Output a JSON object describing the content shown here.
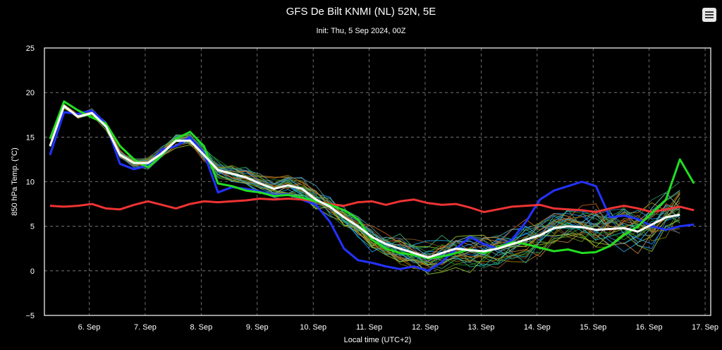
{
  "menu": {
    "icon": "hamburger-menu-icon"
  },
  "chart_data": {
    "type": "line",
    "title": "GFS De Bilt KNMI (NL) 52N, 5E",
    "subtitle": "Init: Thu, 5 Sep 2024, 00Z",
    "xlabel": "Local time (UTC+2)",
    "ylabel": "850 hPa Temp. (°C)",
    "ylim": [
      -5,
      25
    ],
    "yticks": [
      -5,
      0,
      5,
      10,
      15,
      20,
      25
    ],
    "xlim": [
      5.2,
      17.1
    ],
    "xticks": [
      6,
      7,
      8,
      9,
      10,
      11,
      12,
      13,
      14,
      15,
      16,
      17
    ],
    "xtick_labels": [
      "6. Sep",
      "7. Sep",
      "8. Sep",
      "9. Sep",
      "10. Sep",
      "11. Sep",
      "12. Sep",
      "13. Sep",
      "14. Sep",
      "15. Sep",
      "16. Sep",
      "17. Sep"
    ],
    "grid": true,
    "x_unit": "days (September 2024, local time)",
    "series": [
      {
        "color": "#ee3333",
        "values": [
          7.3,
          7.2,
          7.3,
          7.5,
          7.0,
          6.9,
          7.4,
          7.8,
          7.4,
          7.0,
          7.5,
          7.8,
          7.7,
          7.8,
          7.9,
          8.1,
          8.0,
          8.1,
          8.0,
          7.8,
          7.5,
          7.3,
          7.7,
          7.8,
          7.4,
          7.8,
          8.0,
          7.6,
          7.4,
          7.5,
          7.1,
          6.6,
          6.9,
          7.2,
          7.3,
          7.4,
          7.0,
          6.9,
          6.8,
          6.6,
          7.0,
          7.3,
          7.0,
          6.6,
          6.9,
          7.2,
          6.8
        ]
      },
      {
        "color": "#ffffff",
        "values": [
          14.0,
          18.5,
          17.3,
          17.7,
          16.2,
          13.0,
          12.1,
          12.1,
          13.2,
          14.6,
          14.6,
          13.0,
          11.3,
          10.9,
          10.5,
          9.8,
          9.2,
          9.6,
          9.2,
          8.0,
          7.2,
          6.0,
          5.0,
          3.8,
          3.0,
          2.5,
          2.0,
          1.5,
          2.0,
          2.5,
          2.3,
          2.2,
          2.5,
          3.0,
          3.5,
          4.0,
          4.8,
          5.0,
          4.9,
          4.6,
          4.7,
          4.8,
          4.4,
          5.2,
          6.0,
          6.3
        ]
      },
      {
        "color": "#22dd22",
        "values": [
          14.8,
          19.0,
          18.0,
          17.2,
          16.5,
          14.0,
          12.5,
          11.6,
          13.0,
          14.8,
          15.6,
          14.0,
          9.8,
          9.5,
          9.0,
          8.8,
          8.4,
          8.5,
          8.2,
          7.8,
          7.4,
          6.8,
          5.8,
          3.5,
          2.5,
          2.0,
          1.8,
          1.4,
          1.6,
          2.0,
          2.4,
          2.0,
          2.6,
          3.2,
          3.0,
          2.6,
          2.2,
          2.4,
          2.0,
          2.1,
          2.8,
          4.0,
          5.0,
          6.5,
          8.0,
          12.5,
          9.8
        ]
      },
      {
        "color": "#2233ff",
        "values": [
          13.0,
          17.8,
          17.6,
          18.0,
          16.5,
          12.0,
          11.4,
          11.8,
          13.6,
          14.0,
          15.0,
          13.2,
          8.8,
          9.4,
          9.2,
          8.9,
          8.5,
          8.6,
          8.0,
          7.4,
          5.5,
          2.5,
          1.2,
          0.9,
          0.5,
          0.2,
          0.5,
          0.0,
          1.0,
          2.5,
          3.8,
          3.0,
          2.5,
          3.5,
          5.5,
          8.0,
          9.0,
          9.5,
          10.0,
          9.5,
          6.0,
          6.2,
          5.8,
          5.0,
          4.6,
          5.0,
          5.2
        ]
      }
    ],
    "ensemble_members": 30
  }
}
